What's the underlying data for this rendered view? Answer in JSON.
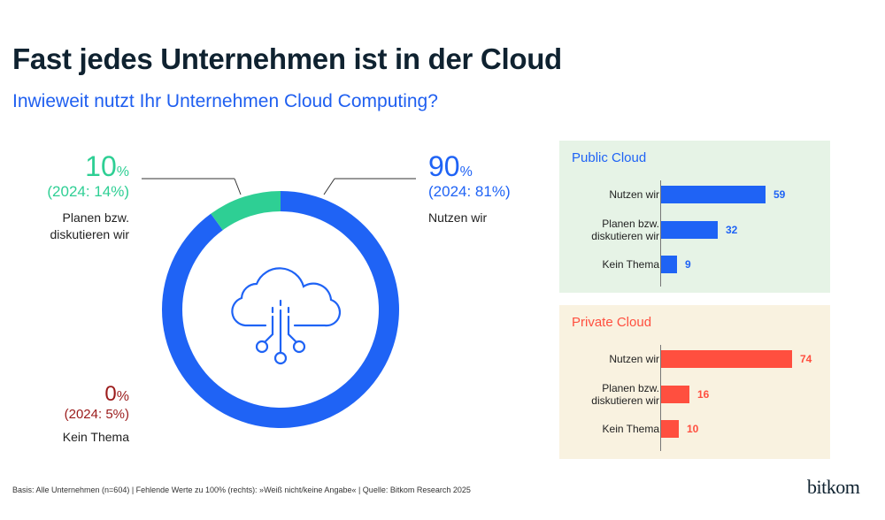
{
  "title": "Fast jedes Unternehmen ist in der Cloud",
  "subtitle": "Inwieweit nutzt Ihr Unternehmen Cloud Computing?",
  "colors": {
    "blue": "#1f63f5",
    "green": "#2ecf94",
    "darkred": "#9b1b1b",
    "red": "#ff4f3f",
    "public_bg": "#e6f3e6",
    "private_bg": "#f9f2e0"
  },
  "chart_data": [
    {
      "type": "pie",
      "style": "donut",
      "center_icon": "cloud-network-icon",
      "slices": [
        {
          "label": "Nutzen wir",
          "value": 90,
          "value_text": "90",
          "unit": "%",
          "previous": "(2024: 81%)",
          "color": "#1f63f5"
        },
        {
          "label": "Planen bzw. diskutieren wir",
          "label_lines": [
            "Planen bzw.",
            "diskutieren wir"
          ],
          "value": 10,
          "value_text": "10",
          "unit": "%",
          "previous": "(2024: 14%)",
          "color": "#2ecf94"
        },
        {
          "label": "Kein Thema",
          "value": 0,
          "value_text": "0",
          "unit": "%",
          "previous": "(2024: 5%)",
          "color": "#9b1b1b"
        }
      ]
    },
    {
      "type": "bar",
      "orientation": "horizontal",
      "title": "Public Cloud",
      "color": "#1f63f5",
      "categories": [
        "Nutzen wir",
        "Planen bzw. diskutieren wir",
        "Kein Thema"
      ],
      "category_lines": [
        [
          "Nutzen wir"
        ],
        [
          "Planen bzw.",
          "diskutieren wir"
        ],
        [
          "Kein Thema"
        ]
      ],
      "values": [
        59,
        32,
        9
      ],
      "xlim": [
        0,
        100
      ]
    },
    {
      "type": "bar",
      "orientation": "horizontal",
      "title": "Private Cloud",
      "color": "#ff4f3f",
      "categories": [
        "Nutzen wir",
        "Planen bzw. diskutieren wir",
        "Kein Thema"
      ],
      "category_lines": [
        [
          "Nutzen wir"
        ],
        [
          "Planen bzw.",
          "diskutieren wir"
        ],
        [
          "Kein Thema"
        ]
      ],
      "values": [
        74,
        16,
        10
      ],
      "xlim": [
        0,
        100
      ]
    }
  ],
  "footer": "Basis: Alle Unternehmen (n=604) | Fehlende Werte zu 100% (rechts): »Weiß nicht/keine Angabe« | Quelle: Bitkom Research 2025",
  "logo": "bitkom"
}
